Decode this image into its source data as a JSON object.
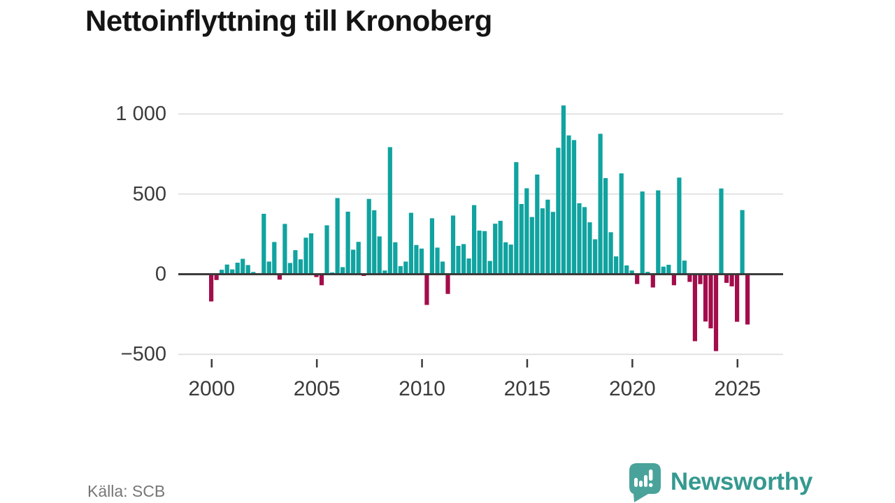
{
  "header": {
    "title": "Nettoinflyttning till Kronoberg"
  },
  "footer": {
    "source": "Källa: SCB",
    "brand": "Newsworthy"
  },
  "chart_data": {
    "type": "bar",
    "title": "Nettoinflyttning till Kronoberg",
    "x_axis": {
      "start_year": 2000,
      "period": "quarter",
      "tick_labels": [
        "2000",
        "2005",
        "2010",
        "2015",
        "2020",
        "2025"
      ],
      "tick_indices": [
        0,
        20,
        40,
        60,
        80,
        100
      ]
    },
    "y_axis": {
      "ticks": [
        {
          "label": "1 000",
          "value": 1000
        },
        {
          "label": "500",
          "value": 500
        },
        {
          "label": "0",
          "value": 0
        },
        {
          "label": "−500",
          "value": -500
        }
      ],
      "range": [
        -550,
        1100
      ],
      "grid": true
    },
    "colors": {
      "positive": "#10a3a0",
      "negative": "#a30d4b",
      "zero_line": "#3b3b3b",
      "grid_line": "#e2e2e2",
      "axis_text": "#3b3b3b",
      "brand_teal": "#4aa39b"
    },
    "values": [
      -170,
      -36,
      28,
      60,
      30,
      72,
      96,
      57,
      14,
      5,
      377,
      79,
      201,
      -34,
      314,
      70,
      150,
      93,
      228,
      255,
      -18,
      -69,
      305,
      11,
      475,
      44,
      390,
      153,
      202,
      -11,
      470,
      399,
      236,
      23,
      793,
      199,
      50,
      79,
      383,
      182,
      160,
      -192,
      349,
      166,
      79,
      -123,
      366,
      177,
      188,
      98,
      431,
      272,
      269,
      83,
      315,
      333,
      199,
      185,
      699,
      438,
      536,
      357,
      622,
      411,
      465,
      389,
      789,
      1053,
      866,
      837,
      443,
      419,
      324,
      218,
      876,
      600,
      262,
      111,
      629,
      55,
      23,
      -61,
      516,
      15,
      -83,
      523,
      47,
      59,
      -69,
      603,
      85,
      -48,
      -418,
      -62,
      -295,
      -338,
      -480,
      535,
      -54,
      -76,
      -297,
      400,
      -314
    ]
  }
}
